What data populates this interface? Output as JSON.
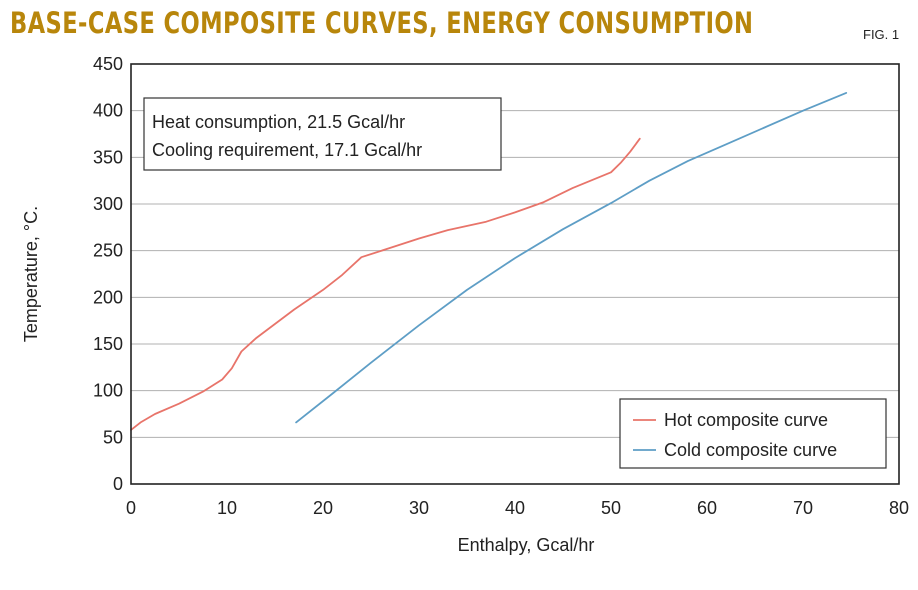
{
  "header": {
    "title": "BASE-CASE COMPOSITE CURVES, ENERGY CONSUMPTION",
    "figure_label": "FIG. 1"
  },
  "chart_data": {
    "type": "line",
    "title": "BASE-CASE COMPOSITE CURVES, ENERGY CONSUMPTION",
    "xlabel": "Enthalpy, Gcal/hr",
    "ylabel": "Temperature, °C.",
    "xlim": [
      0,
      80
    ],
    "ylim": [
      0,
      450
    ],
    "xticks": [
      0,
      10,
      20,
      30,
      40,
      50,
      60,
      70,
      80
    ],
    "yticks": [
      0,
      50,
      100,
      150,
      200,
      250,
      300,
      350,
      400,
      450
    ],
    "grid": "horizontal",
    "legend_position": "bottom-right",
    "annotation": [
      "Heat consumption, 21.5 Gcal/hr",
      "Cooling requirement, 17.1 Gcal/hr"
    ],
    "series": [
      {
        "name": "Hot composite curve",
        "color": "#e8746a",
        "x": [
          0,
          1,
          2.5,
          5,
          7.5,
          9.5,
          10.5,
          11.5,
          13,
          17,
          20,
          22,
          24,
          27,
          30,
          33,
          37,
          40,
          43,
          46,
          50,
          51,
          52,
          53
        ],
        "y": [
          58,
          66,
          75,
          86,
          99,
          112,
          124,
          142,
          156,
          187,
          208,
          224,
          243,
          253,
          263,
          272,
          281,
          291,
          302,
          317,
          334,
          344,
          356,
          370
        ]
      },
      {
        "name": "Cold composite curve",
        "color": "#5e9ec6",
        "x": [
          17.2,
          21,
          25,
          30,
          35,
          40,
          45,
          50,
          54,
          58,
          62,
          66,
          70,
          74.5
        ],
        "y": [
          66,
          97,
          130,
          170,
          208,
          242,
          273,
          301,
          325,
          346,
          364,
          382,
          400,
          419
        ]
      }
    ]
  }
}
